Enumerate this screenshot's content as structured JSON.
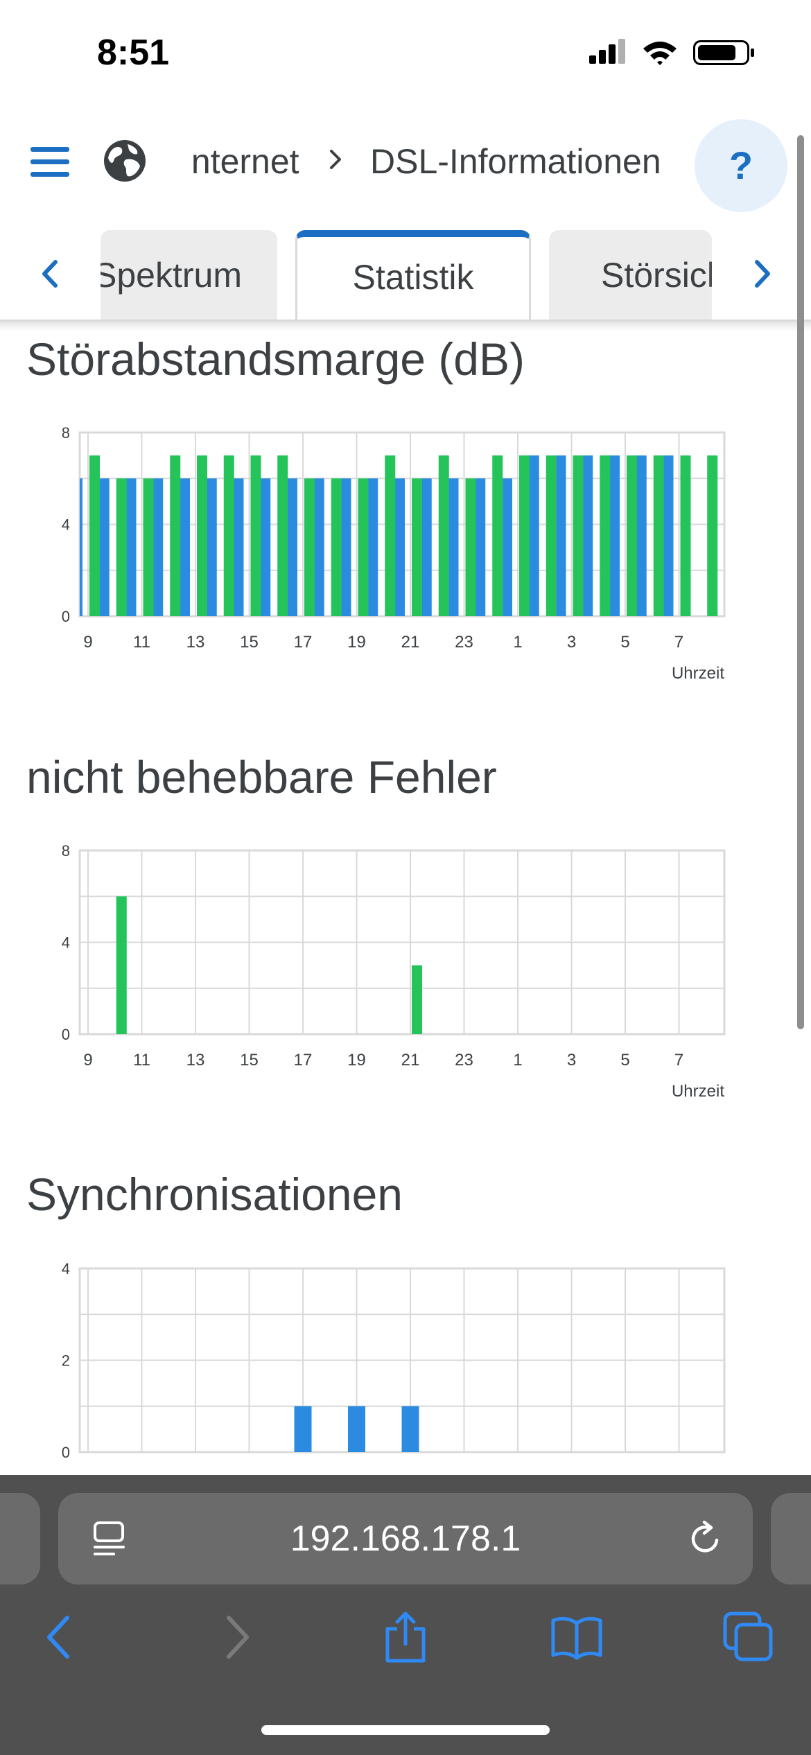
{
  "status_bar": {
    "time": "8:51"
  },
  "header": {
    "breadcrumb": [
      "Internet",
      "DSL-Informationen"
    ],
    "help_label": "?"
  },
  "tabs": [
    "Spektrum",
    "Statistik",
    "Störsicherheit"
  ],
  "active_tab": "Statistik",
  "colors": {
    "accent": "#1b6ec2",
    "upstream_blue": "#2b8be0",
    "downstream_green": "#24c45a",
    "grid": "#d9d9d9"
  },
  "sections": {
    "snr": {
      "title": "Störabstandsmarge (dB)"
    },
    "errors": {
      "title": "nicht behebbare Fehler"
    },
    "sync": {
      "title": "Synchronisationen"
    }
  },
  "chart_data": [
    {
      "type": "bar",
      "title": "Störabstandsmarge (dB)",
      "xlabel": "Uhrzeit",
      "ylabel": "",
      "ylim": [
        0,
        8
      ],
      "yticks": [
        0,
        4,
        8
      ],
      "x_tick_labels": [
        "9",
        "11",
        "13",
        "15",
        "17",
        "19",
        "21",
        "23",
        "1",
        "3",
        "5",
        "7"
      ],
      "categories": [
        "8",
        "9",
        "10",
        "11",
        "12",
        "13",
        "14",
        "15",
        "16",
        "17",
        "18",
        "19",
        "20",
        "21",
        "22",
        "23",
        "0",
        "1",
        "2",
        "3",
        "4",
        "5",
        "6",
        "7",
        "8"
      ],
      "grid": true,
      "series": [
        {
          "values": [
            6,
            6,
            6,
            6,
            6,
            6,
            6,
            6,
            6,
            6,
            6,
            6,
            6,
            6,
            6,
            6,
            6,
            6,
            7,
            7,
            7,
            7,
            7,
            7,
            null
          ]
        },
        {
          "values": [
            null,
            7,
            6,
            6,
            7,
            7,
            7,
            7,
            7,
            6,
            6,
            6,
            7,
            6,
            7,
            6,
            7,
            7,
            7,
            7,
            7,
            7,
            7,
            7,
            7
          ]
        }
      ]
    },
    {
      "type": "bar",
      "title": "nicht behebbare Fehler",
      "xlabel": "Uhrzeit",
      "ylabel": "",
      "ylim": [
        0,
        8
      ],
      "yticks": [
        0,
        4,
        8
      ],
      "x_tick_labels": [
        "9",
        "11",
        "13",
        "15",
        "17",
        "19",
        "21",
        "23",
        "1",
        "3",
        "5",
        "7"
      ],
      "categories": [
        "8",
        "9",
        "10",
        "11",
        "12",
        "13",
        "14",
        "15",
        "16",
        "17",
        "18",
        "19",
        "20",
        "21",
        "22",
        "23",
        "0",
        "1",
        "2",
        "3",
        "4",
        "5",
        "6",
        "7",
        "8"
      ],
      "grid": true,
      "series": [
        {
          "values": [
            0,
            0,
            0,
            0,
            0,
            0,
            0,
            0,
            0,
            0,
            0,
            0,
            0,
            0,
            0,
            0,
            0,
            0,
            0,
            0,
            0,
            0,
            0,
            0,
            0
          ]
        },
        {
          "values": [
            0,
            0,
            6,
            0,
            0,
            0,
            0,
            0,
            0,
            0,
            0,
            0,
            0,
            3,
            0,
            0,
            0,
            0,
            0,
            0,
            0,
            0,
            0,
            0,
            0
          ]
        }
      ]
    },
    {
      "type": "bar",
      "title": "Synchronisationen",
      "xlabel": "",
      "ylabel": "",
      "ylim": [
        0,
        4
      ],
      "yticks": [
        0,
        2,
        4
      ],
      "x_tick_labels": [],
      "categories": [
        "8",
        "9",
        "10",
        "11",
        "12",
        "13",
        "14",
        "15",
        "16",
        "17",
        "18",
        "19",
        "20",
        "21",
        "22",
        "23",
        "0",
        "1",
        "2",
        "3",
        "4",
        "5",
        "6",
        "7",
        "8"
      ],
      "grid": true,
      "series": [
        {
          "values": [
            0,
            0,
            0,
            0,
            0,
            0,
            0,
            0,
            0,
            1,
            0,
            1,
            0,
            1,
            0,
            0,
            0,
            0,
            0,
            0,
            0,
            0,
            0,
            0,
            0
          ]
        }
      ]
    }
  ],
  "browser": {
    "url": "192.168.178.1"
  }
}
